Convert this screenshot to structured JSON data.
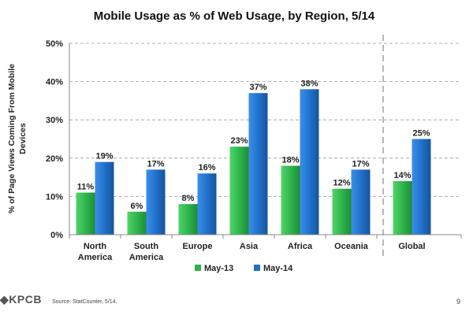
{
  "colors": {
    "may13": "#2db24a",
    "may14": "#1f6fc9",
    "axis": "#888888",
    "grid": "#9a9a9a",
    "divider": "#888888"
  },
  "footer": {
    "logo": "KPCB",
    "source": "Source: StatCounter, 5/14.",
    "page_number": "9"
  },
  "chart_data": {
    "type": "bar",
    "title": "Mobile Usage as % of Web Usage, by Region, 5/14",
    "ylabel": "% of Page Views Coming From Mobile Devices",
    "ylabel_lines": [
      "% of Page Views Coming From Mobile",
      "Devices"
    ],
    "xlabel": "",
    "ylim": [
      0,
      50
    ],
    "yticks": [
      0,
      10,
      20,
      30,
      40,
      50
    ],
    "ytick_labels": [
      "0%",
      "10%",
      "20%",
      "30%",
      "40%",
      "50%"
    ],
    "grid": "horizontal dashed",
    "legend_position": "bottom",
    "categories": [
      "North America",
      "South America",
      "Europe",
      "Asia",
      "Africa",
      "Oceania",
      "Global"
    ],
    "category_lines": [
      [
        "North",
        "America"
      ],
      [
        "South",
        "America"
      ],
      [
        "Europe"
      ],
      [
        "Asia"
      ],
      [
        "Africa"
      ],
      [
        "Oceania"
      ],
      [
        "Global"
      ]
    ],
    "divider_before": "Global",
    "series": [
      {
        "name": "May-13",
        "values": [
          11,
          6,
          8,
          23,
          18,
          12,
          14
        ],
        "labels": [
          "11%",
          "6%",
          "8%",
          "23%",
          "18%",
          "12%",
          "14%"
        ]
      },
      {
        "name": "May-14",
        "values": [
          19,
          17,
          16,
          37,
          38,
          17,
          25
        ],
        "labels": [
          "19%",
          "17%",
          "16%",
          "37%",
          "38%",
          "17%",
          "25%"
        ]
      }
    ]
  }
}
